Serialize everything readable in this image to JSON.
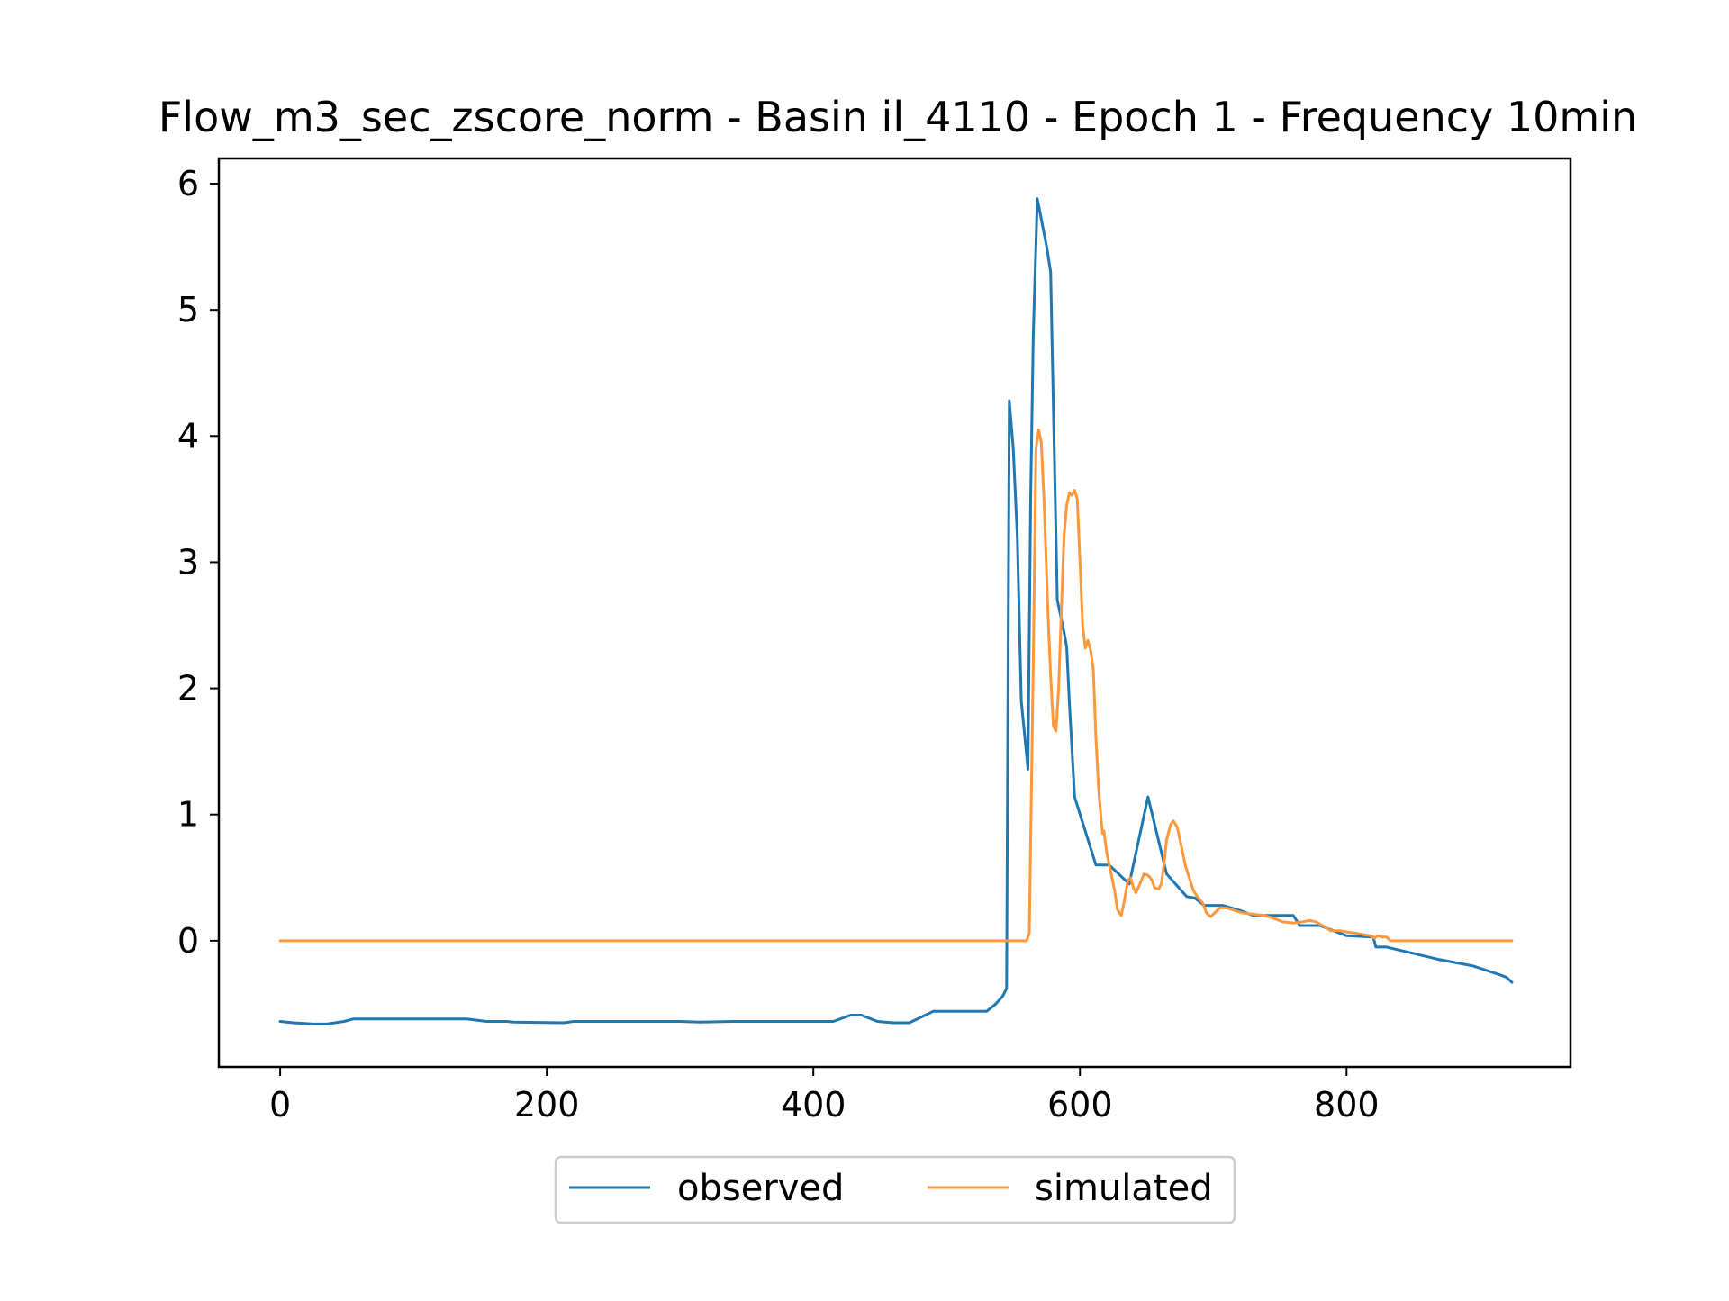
{
  "chart_data": {
    "type": "line",
    "title": "Flow_m3_sec_zscore_norm - Basin il_4110 - Epoch 1 - Frequency 10min",
    "xlabel": "",
    "ylabel": "",
    "xlim": [
      -46,
      968
    ],
    "ylim": [
      -1.0,
      6.2
    ],
    "x_ticks": [
      0,
      200,
      400,
      600,
      800
    ],
    "y_ticks": [
      0,
      1,
      2,
      3,
      4,
      5,
      6
    ],
    "grid": false,
    "legend_position": "lower-center-outside",
    "series": [
      {
        "name": "observed",
        "color": "#1f77b4",
        "points": [
          [
            0,
            -0.64
          ],
          [
            10,
            -0.65
          ],
          [
            25,
            -0.66
          ],
          [
            35,
            -0.66
          ],
          [
            48,
            -0.64
          ],
          [
            55,
            -0.62
          ],
          [
            80,
            -0.62
          ],
          [
            140,
            -0.62
          ],
          [
            155,
            -0.64
          ],
          [
            170,
            -0.64
          ],
          [
            175,
            -0.645
          ],
          [
            213,
            -0.65
          ],
          [
            220,
            -0.64
          ],
          [
            300,
            -0.64
          ],
          [
            315,
            -0.645
          ],
          [
            340,
            -0.64
          ],
          [
            415,
            -0.64
          ],
          [
            428,
            -0.59
          ],
          [
            436,
            -0.59
          ],
          [
            448,
            -0.64
          ],
          [
            460,
            -0.65
          ],
          [
            472,
            -0.65
          ],
          [
            490,
            -0.56
          ],
          [
            530,
            -0.56
          ],
          [
            537,
            -0.5
          ],
          [
            542,
            -0.44
          ],
          [
            545,
            -0.38
          ],
          [
            547,
            4.28
          ],
          [
            550,
            3.9
          ],
          [
            553,
            3.2
          ],
          [
            556,
            1.9
          ],
          [
            561,
            1.36
          ],
          [
            563,
            3.5
          ],
          [
            565,
            4.8
          ],
          [
            568,
            5.88
          ],
          [
            575,
            5.5
          ],
          [
            578,
            5.3
          ],
          [
            583,
            2.7
          ],
          [
            588,
            2.45
          ],
          [
            590,
            2.33
          ],
          [
            592,
            1.9
          ],
          [
            596,
            1.14
          ],
          [
            612,
            0.6
          ],
          [
            622,
            0.6
          ],
          [
            637,
            0.45
          ],
          [
            651,
            1.14
          ],
          [
            665,
            0.53
          ],
          [
            680,
            0.35
          ],
          [
            686,
            0.34
          ],
          [
            693,
            0.28
          ],
          [
            707,
            0.28
          ],
          [
            720,
            0.24
          ],
          [
            730,
            0.2
          ],
          [
            760,
            0.2
          ],
          [
            765,
            0.12
          ],
          [
            780,
            0.12
          ],
          [
            800,
            0.04
          ],
          [
            820,
            0.03
          ],
          [
            822,
            -0.05
          ],
          [
            830,
            -0.05
          ],
          [
            870,
            -0.15
          ],
          [
            895,
            -0.2
          ],
          [
            915,
            -0.27
          ],
          [
            920,
            -0.29
          ],
          [
            924,
            -0.33
          ]
        ]
      },
      {
        "name": "simulated",
        "color": "#ff983a",
        "points": [
          [
            0,
            0.0
          ],
          [
            560,
            0.0
          ],
          [
            562,
            0.06
          ],
          [
            565,
            2.2
          ],
          [
            567,
            3.9
          ],
          [
            569,
            4.05
          ],
          [
            571,
            3.95
          ],
          [
            573,
            3.5
          ],
          [
            576,
            2.6
          ],
          [
            578,
            2.1
          ],
          [
            580,
            1.7
          ],
          [
            582,
            1.66
          ],
          [
            584,
            2.0
          ],
          [
            586,
            2.6
          ],
          [
            588,
            3.2
          ],
          [
            590,
            3.45
          ],
          [
            592,
            3.55
          ],
          [
            594,
            3.53
          ],
          [
            596,
            3.57
          ],
          [
            598,
            3.5
          ],
          [
            600,
            3.0
          ],
          [
            602,
            2.5
          ],
          [
            604,
            2.32
          ],
          [
            606,
            2.38
          ],
          [
            608,
            2.3
          ],
          [
            610,
            2.15
          ],
          [
            612,
            1.6
          ],
          [
            614,
            1.2
          ],
          [
            616,
            0.95
          ],
          [
            617,
            0.85
          ],
          [
            618,
            0.87
          ],
          [
            620,
            0.7
          ],
          [
            623,
            0.55
          ],
          [
            626,
            0.4
          ],
          [
            628,
            0.25
          ],
          [
            631,
            0.2
          ],
          [
            633,
            0.3
          ],
          [
            636,
            0.48
          ],
          [
            638,
            0.5
          ],
          [
            640,
            0.42
          ],
          [
            642,
            0.38
          ],
          [
            645,
            0.45
          ],
          [
            648,
            0.53
          ],
          [
            651,
            0.52
          ],
          [
            654,
            0.48
          ],
          [
            656,
            0.42
          ],
          [
            659,
            0.41
          ],
          [
            661,
            0.45
          ],
          [
            663,
            0.6
          ],
          [
            665,
            0.8
          ],
          [
            668,
            0.92
          ],
          [
            670,
            0.95
          ],
          [
            673,
            0.9
          ],
          [
            676,
            0.75
          ],
          [
            679,
            0.6
          ],
          [
            682,
            0.5
          ],
          [
            685,
            0.4
          ],
          [
            688,
            0.35
          ],
          [
            692,
            0.3
          ],
          [
            695,
            0.22
          ],
          [
            698,
            0.19
          ],
          [
            701,
            0.22
          ],
          [
            705,
            0.26
          ],
          [
            710,
            0.26
          ],
          [
            716,
            0.24
          ],
          [
            722,
            0.22
          ],
          [
            730,
            0.21
          ],
          [
            738,
            0.2
          ],
          [
            745,
            0.18
          ],
          [
            752,
            0.15
          ],
          [
            760,
            0.14
          ],
          [
            767,
            0.15
          ],
          [
            772,
            0.16
          ],
          [
            777,
            0.15
          ],
          [
            782,
            0.12
          ],
          [
            788,
            0.08
          ],
          [
            795,
            0.08
          ],
          [
            800,
            0.07
          ],
          [
            807,
            0.06
          ],
          [
            812,
            0.05
          ],
          [
            818,
            0.04
          ],
          [
            821,
            0.02
          ],
          [
            823,
            0.04
          ],
          [
            827,
            0.03
          ],
          [
            830,
            0.03
          ],
          [
            833,
            0.0
          ],
          [
            924,
            0.0
          ]
        ]
      }
    ]
  }
}
